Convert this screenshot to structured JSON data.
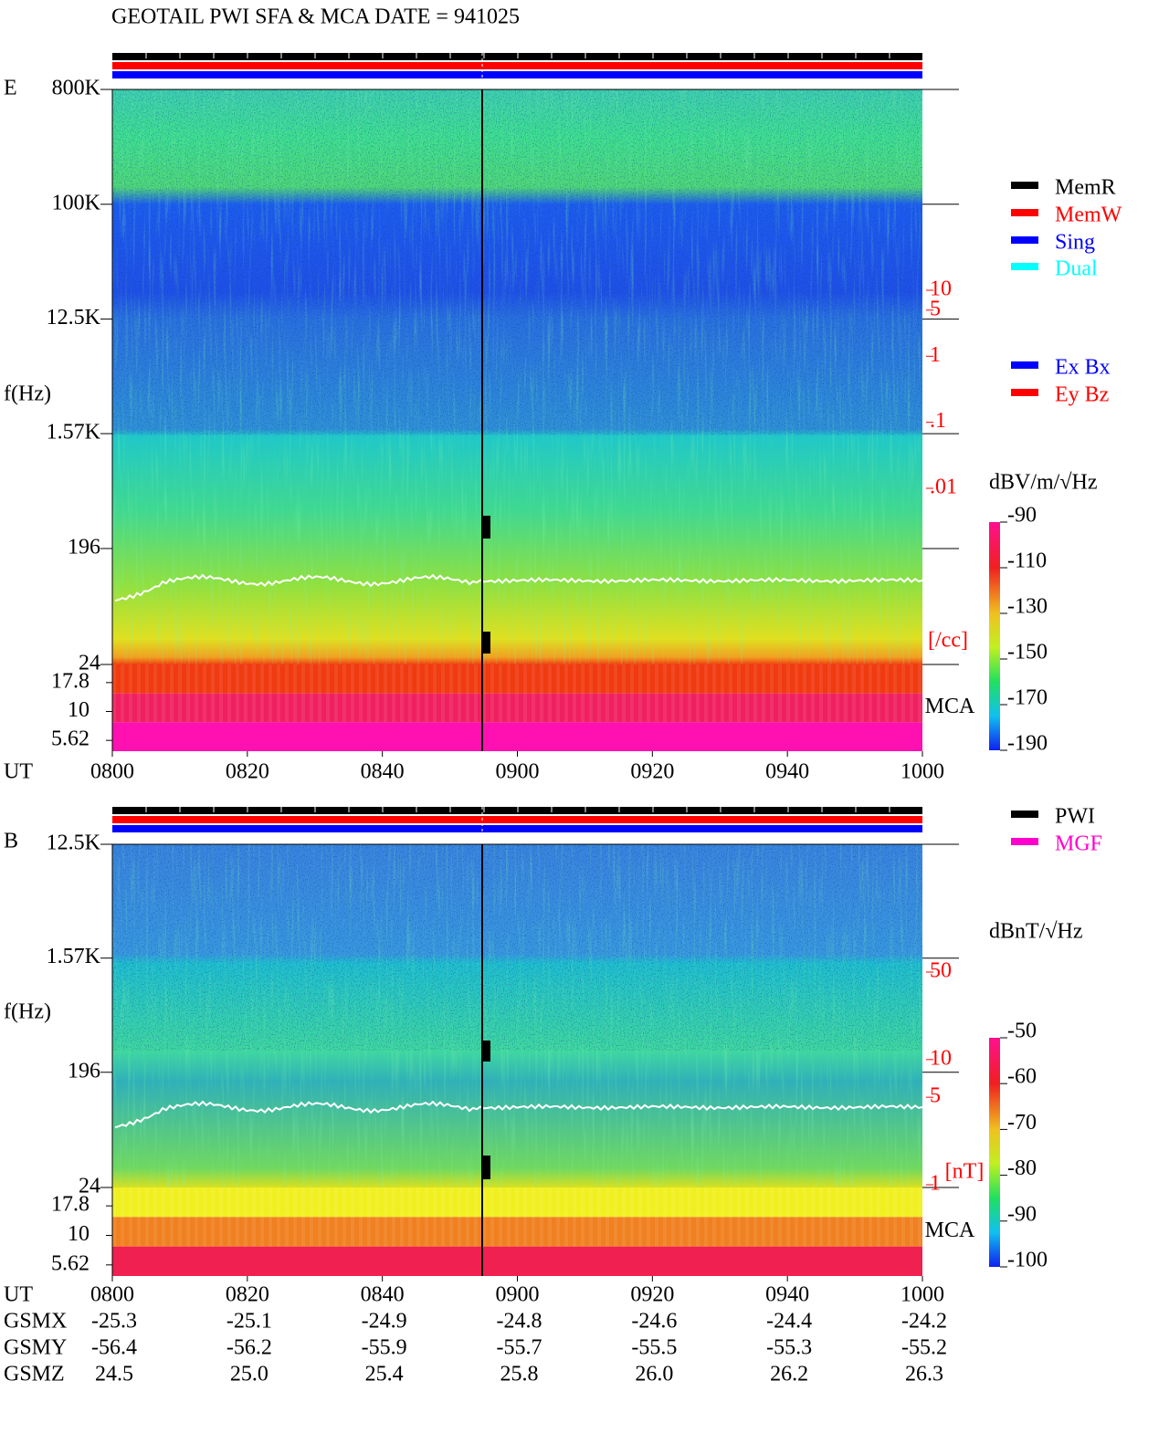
{
  "title": "GEOTAIL  PWI SFA & MCA   DATE = 941025",
  "chart_data": [
    {
      "type": "spectrogram",
      "panel_label": "E",
      "ylabel": "f(Hz)",
      "xlabel": "UT",
      "yscale": "log",
      "ylim": [
        24,
        800000
      ],
      "yticks": [
        {
          "value": 800000,
          "label": "800K"
        },
        {
          "value": 100000,
          "label": "100K"
        },
        {
          "value": 12500,
          "label": "12.5K"
        },
        {
          "value": 1570,
          "label": "1.57K"
        },
        196,
        24
      ],
      "mca_label": "MCA",
      "mca_channels": [
        17.8,
        10,
        5.62
      ],
      "xticks": [
        "0800",
        "0820",
        "0840",
        "0900",
        "0920",
        "0940",
        "1000"
      ],
      "status_legend": [
        {
          "name": "MemR",
          "color": "#000000"
        },
        {
          "name": "MemW",
          "color": "#ff0000"
        },
        {
          "name": "Sing",
          "color": "#0000ff"
        },
        {
          "name": "Dual",
          "color": "#00ffff"
        }
      ],
      "component_legend": [
        {
          "name": "Ex Bx",
          "color": "#0000ff"
        },
        {
          "name": "Ey Bz",
          "color": "#ff0000"
        }
      ],
      "colorbar": {
        "label": "dBV/m/√Hz",
        "lim": [
          -190,
          -90
        ],
        "ticks": [
          -90,
          -110,
          -130,
          -150,
          -170,
          -190
        ]
      },
      "side_scale": {
        "unit": "[/cc]",
        "yscale": "log",
        "lim": [
          0.01,
          10
        ],
        "color": "#ff0000",
        "ticks": [
          10,
          5,
          1,
          {
            "value": 0.1,
            "label": ".1"
          },
          {
            "value": 0.01,
            "label": ".01"
          }
        ]
      }
    },
    {
      "type": "spectrogram",
      "panel_label": "B",
      "ylabel": "f(Hz)",
      "xlabel": "UT",
      "yscale": "log",
      "ylim": [
        24,
        12500
      ],
      "yticks": [
        {
          "value": 12500,
          "label": "12.5K"
        },
        {
          "value": 1570,
          "label": "1.57K"
        },
        196,
        24
      ],
      "mca_label": "MCA",
      "mca_channels": [
        17.8,
        10,
        5.62
      ],
      "xticks": [
        "0800",
        "0820",
        "0840",
        "0900",
        "0920",
        "0940",
        "1000"
      ],
      "status_legend": [
        {
          "name": "PWI",
          "color": "#000000"
        },
        {
          "name": "MGF",
          "color": "#ff00cc"
        }
      ],
      "colorbar": {
        "label": "dBnT/√Hz",
        "lim": [
          -100,
          -50
        ],
        "ticks": [
          -50,
          -60,
          -70,
          -80,
          -90,
          -100
        ]
      },
      "side_scale": {
        "unit": "[nT]",
        "yscale": "log",
        "lim": [
          1,
          50
        ],
        "color": "#ff0000",
        "ticks": [
          50,
          10,
          5,
          1
        ]
      }
    }
  ],
  "orbit": {
    "rows": [
      {
        "label": "GSMX",
        "values": [
          "-25.3",
          "-25.1",
          "-24.9",
          "-24.8",
          "-24.6",
          "-24.4",
          "-24.2"
        ]
      },
      {
        "label": "GSMY",
        "values": [
          "-56.4",
          "-56.2",
          "-55.9",
          "-55.7",
          "-55.5",
          "-55.3",
          "-55.2"
        ]
      },
      {
        "label": "GSMZ",
        "values": [
          "24.5",
          "25.0",
          "25.4",
          "25.8",
          "26.0",
          "26.2",
          "26.3"
        ]
      }
    ]
  }
}
